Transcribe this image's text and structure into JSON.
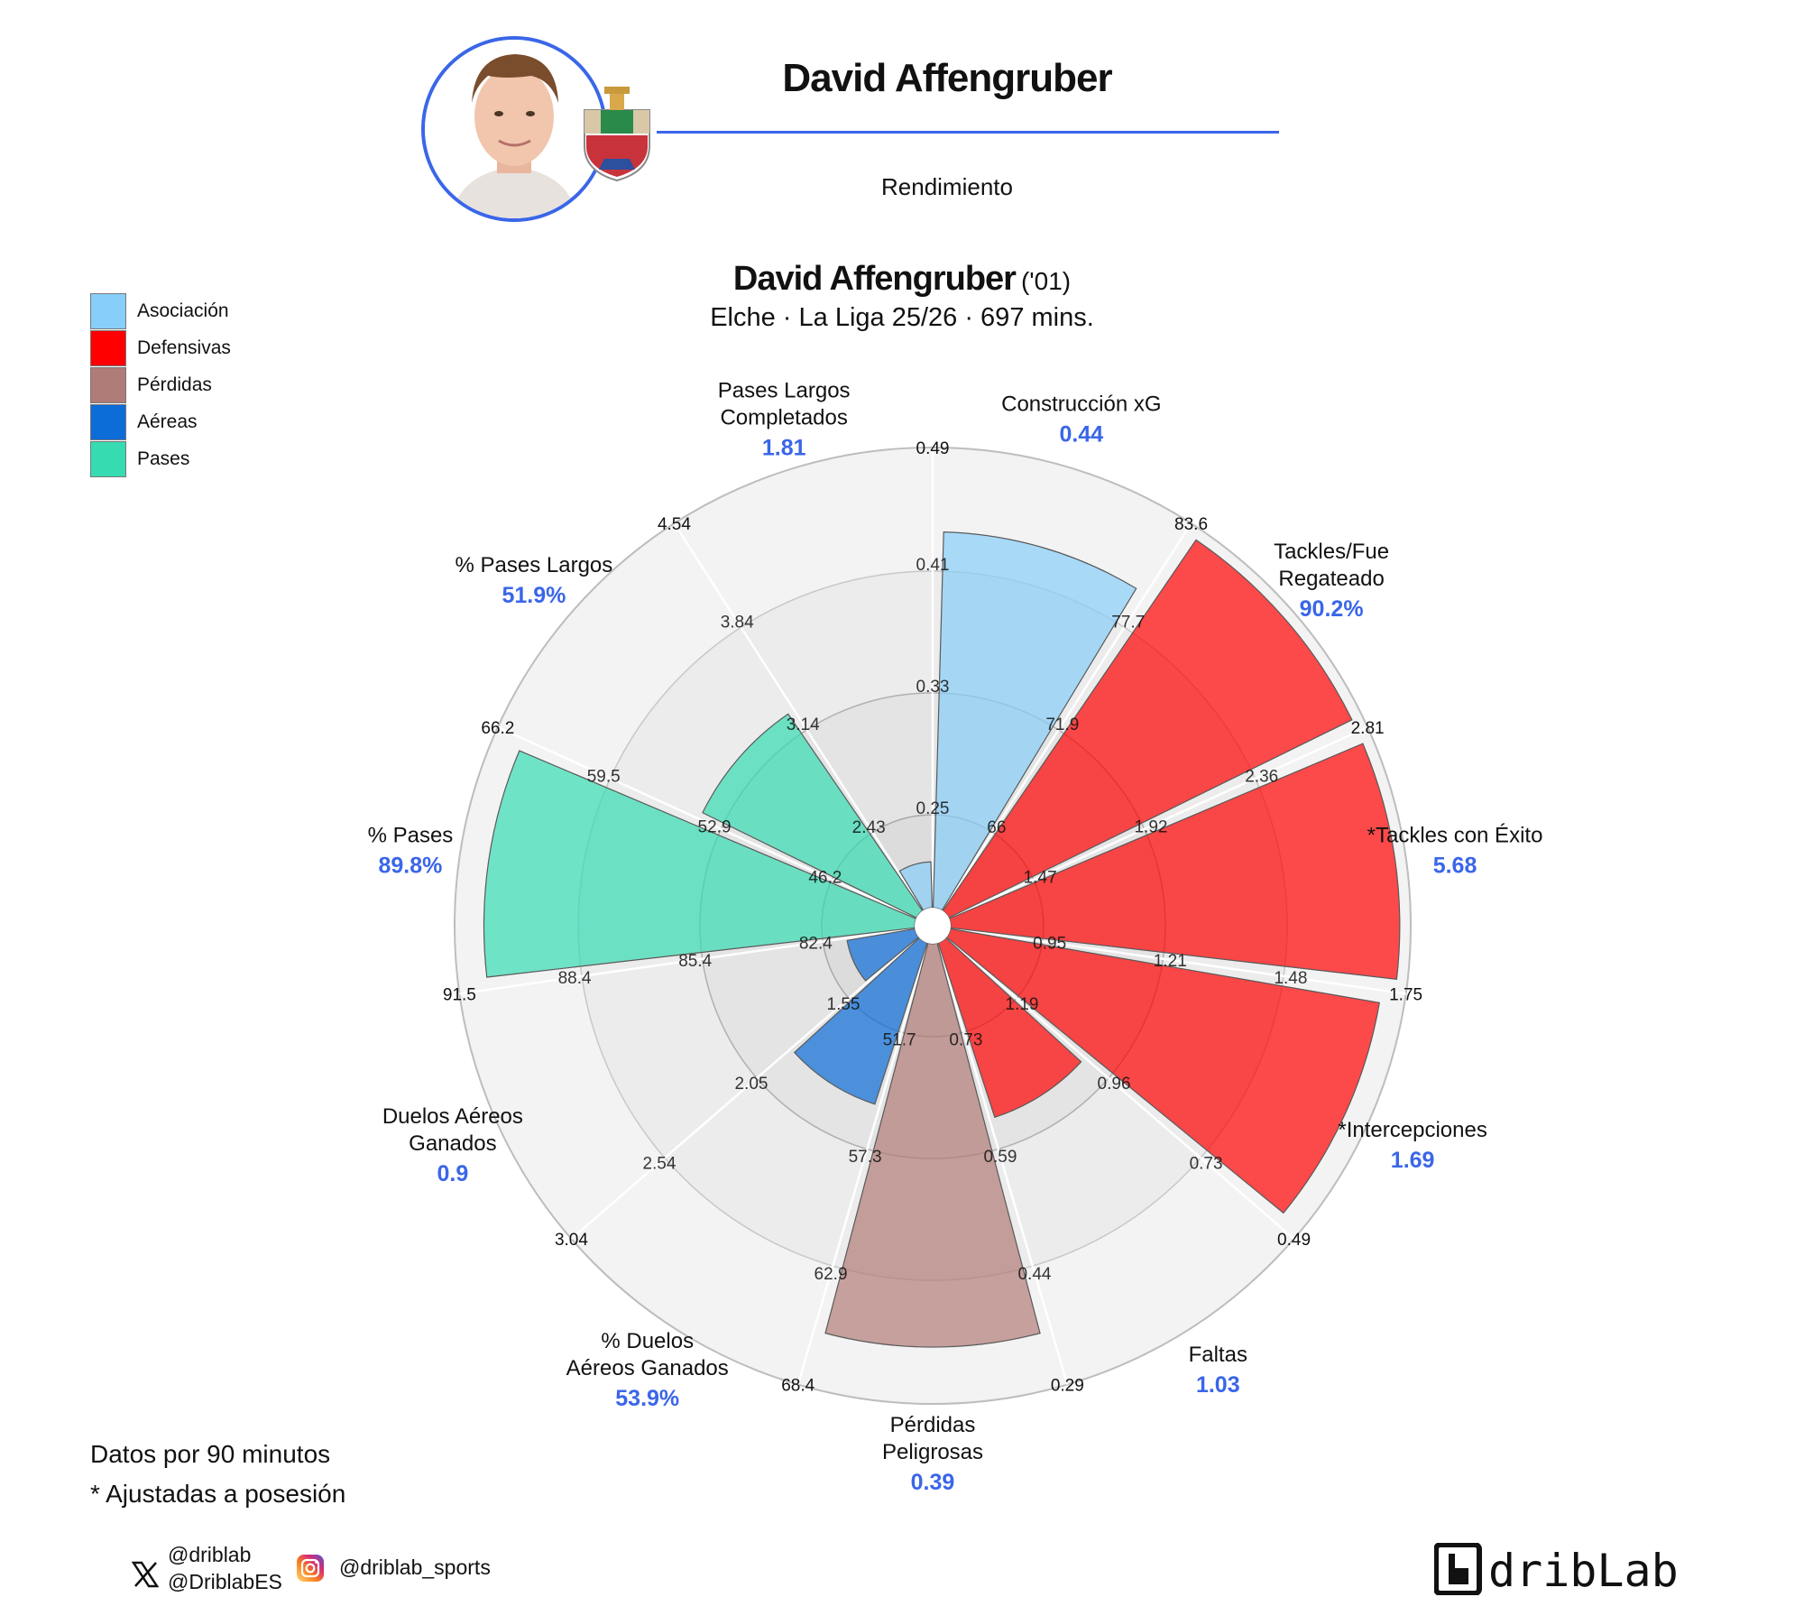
{
  "header": {
    "title": "David Affengruber",
    "subtitle": "Rendimiento"
  },
  "legend": [
    {
      "label": "Asociación",
      "color": "#87cefa"
    },
    {
      "label": "Defensivas",
      "color": "#ff0000"
    },
    {
      "label": "Pérdidas",
      "color": "#b07c78"
    },
    {
      "label": "Aéreas",
      "color": "#0c6cd8"
    },
    {
      "label": "Pases",
      "color": "#36dbb2"
    }
  ],
  "chart_data": {
    "type": "polar-bar",
    "title": "David Affengruber",
    "title_suffix": "('01)",
    "subtitle": "Elche · La Liga 25/26 · 697 mins.",
    "categories": [
      {
        "label": "Construcción xG",
        "value": "0.44",
        "group": "Asociación",
        "pct": 82,
        "ticks": [
          "0.25",
          "0.33",
          "0.41",
          "0.49"
        ]
      },
      {
        "label": "Tackles/Fue Regateado",
        "value": "90.2%",
        "group": "Defensivas",
        "pct": 98,
        "ticks": [
          "66",
          "71.9",
          "77.7",
          "83.6"
        ]
      },
      {
        "label": "*Tackles con Éxito",
        "value": "5.68",
        "group": "Defensivas",
        "pct": 98,
        "ticks": [
          "1.47",
          "1.92",
          "2.36",
          "2.81"
        ]
      },
      {
        "label": "*Intercepciones",
        "value": "1.69",
        "group": "Defensivas",
        "pct": 95,
        "ticks": [
          "0.95",
          "1.21",
          "1.48",
          "1.75"
        ]
      },
      {
        "label": "Faltas",
        "value": "1.03",
        "group": "Defensivas",
        "pct": 40,
        "ticks": [
          "1.19",
          "0.96",
          "0.73",
          "0.49"
        ]
      },
      {
        "label": "Pérdidas Peligrosas",
        "value": "0.39",
        "group": "Pérdidas",
        "pct": 88,
        "ticks": [
          "0.73",
          "0.59",
          "0.44",
          "0.29"
        ]
      },
      {
        "label": "% Duelos Aéreos Ganados",
        "value": "53.9%",
        "group": "Aéreas",
        "pct": 37,
        "ticks": [
          "51.7",
          "57.3",
          "62.9",
          "68.4"
        ]
      },
      {
        "label": "Duelos Aéreos Ganados",
        "value": "0.9",
        "group": "Aéreas",
        "pct": 15,
        "ticks": [
          "1.55",
          "2.05",
          "2.54",
          "3.04"
        ]
      },
      {
        "label": "% Pases",
        "value": "89.8%",
        "group": "Pases",
        "pct": 94,
        "ticks": [
          "82.4",
          "85.4",
          "88.4",
          "91.5"
        ]
      },
      {
        "label": "% Pases Largos",
        "value": "51.9%",
        "group": "Pases",
        "pct": 52,
        "ticks": [
          "46.2",
          "52.9",
          "59.5",
          "66.2"
        ]
      },
      {
        "label": "Pases Largos Completados",
        "value": "1.81",
        "group": "Asociación",
        "pct": 10,
        "ticks": [
          "2.43",
          "3.14",
          "3.84",
          "4.54"
        ]
      }
    ]
  },
  "notes": [
    "Datos por 90 minutos",
    "* Ajustadas a posesión"
  ],
  "social": {
    "x_handles": [
      "@driblab",
      "@DriblabES"
    ],
    "instagram_handle": "@driblab_sports",
    "brand": "dribLab"
  }
}
